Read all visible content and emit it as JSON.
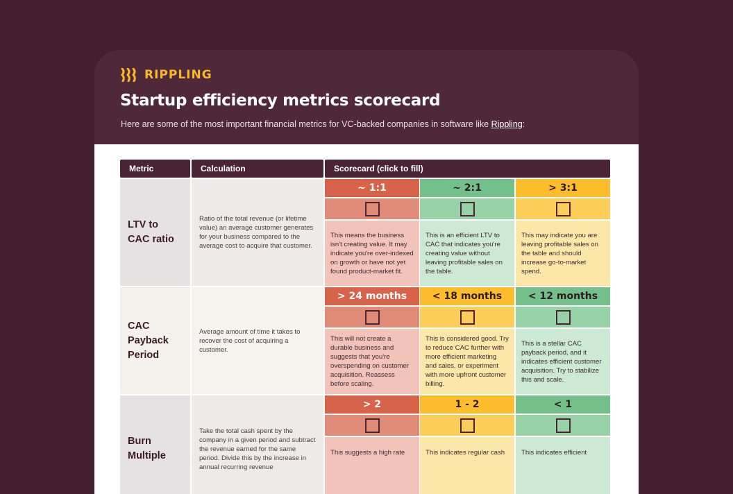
{
  "brand": {
    "name": "RIPPLING",
    "color": "#f7b928"
  },
  "title": "Startup efficiency metrics scorecard",
  "subtitle": {
    "text": "Here are some of the most important financial metrics for VC-backed companies in software like ",
    "link": "Rippling",
    "suffix": ":"
  },
  "table": {
    "headers": {
      "metric": "Metric",
      "calculation": "Calculation",
      "scorecard": "Scorecard (click to fill)"
    },
    "rows": [
      {
        "metric": "LTV to\nCAC ratio",
        "calculation": "Ratio of the total revenue (or lifetime value) an average customer generates for your business compared to the average cost to acquire that customer.",
        "scores": [
          {
            "label": "~ 1:1",
            "status": "red",
            "text": "This means the business isn't creating value. It may indicate you're over-indexed on growth or have not yet found product-market fit."
          },
          {
            "label": "~ 2:1",
            "status": "green",
            "text": "This is an efficient LTV to CAC that indicates you're creating value without leaving profitable sales on the table."
          },
          {
            "label": "> 3:1",
            "status": "yellow",
            "text": "This may indicate you are leaving profitable sales on the table and should increase go-to-market spend."
          }
        ]
      },
      {
        "metric": "CAC\nPayback\nPeriod",
        "calculation": "Average amount of time it takes to recover the cost of acquiring a customer.",
        "scores": [
          {
            "label": "> 24 months",
            "status": "red",
            "text": "This will not create a durable business and suggests that you're overspending on customer acquisition. Reassess before scaling."
          },
          {
            "label": "< 18 months",
            "status": "yellow",
            "text": "This is considered good. Try to reduce CAC further with more efficient marketing and sales, or experiment with more upfront customer billing."
          },
          {
            "label": "< 12 months",
            "status": "green",
            "text": "This is a stellar CAC payback period, and it indicates efficient customer acquisition. Try to stabilize this and scale."
          }
        ]
      },
      {
        "metric": "Burn\nMultiple",
        "calculation": "Take the total cash spent by the company in a given period and subtract the revenue earned for the same period. Divide this by the increase in annual recurring revenue",
        "scores": [
          {
            "label": "> 2",
            "status": "red",
            "text": "This suggests a high rate"
          },
          {
            "label": "1 - 2",
            "status": "yellow",
            "text": "This indicates regular cash"
          },
          {
            "label": "< 1",
            "status": "green",
            "text": "This indicates efficient"
          }
        ]
      }
    ]
  },
  "colors": {
    "red": {
      "header": "#d6634a",
      "box": "#e08a78",
      "desc": "#f2c3b8"
    },
    "green": {
      "header": "#74c08a",
      "box": "#98d3a8",
      "desc": "#cbe9d3"
    },
    "yellow": {
      "header": "#fcbd2c",
      "box": "#fdcd5a",
      "desc": "#fde7a8"
    }
  }
}
